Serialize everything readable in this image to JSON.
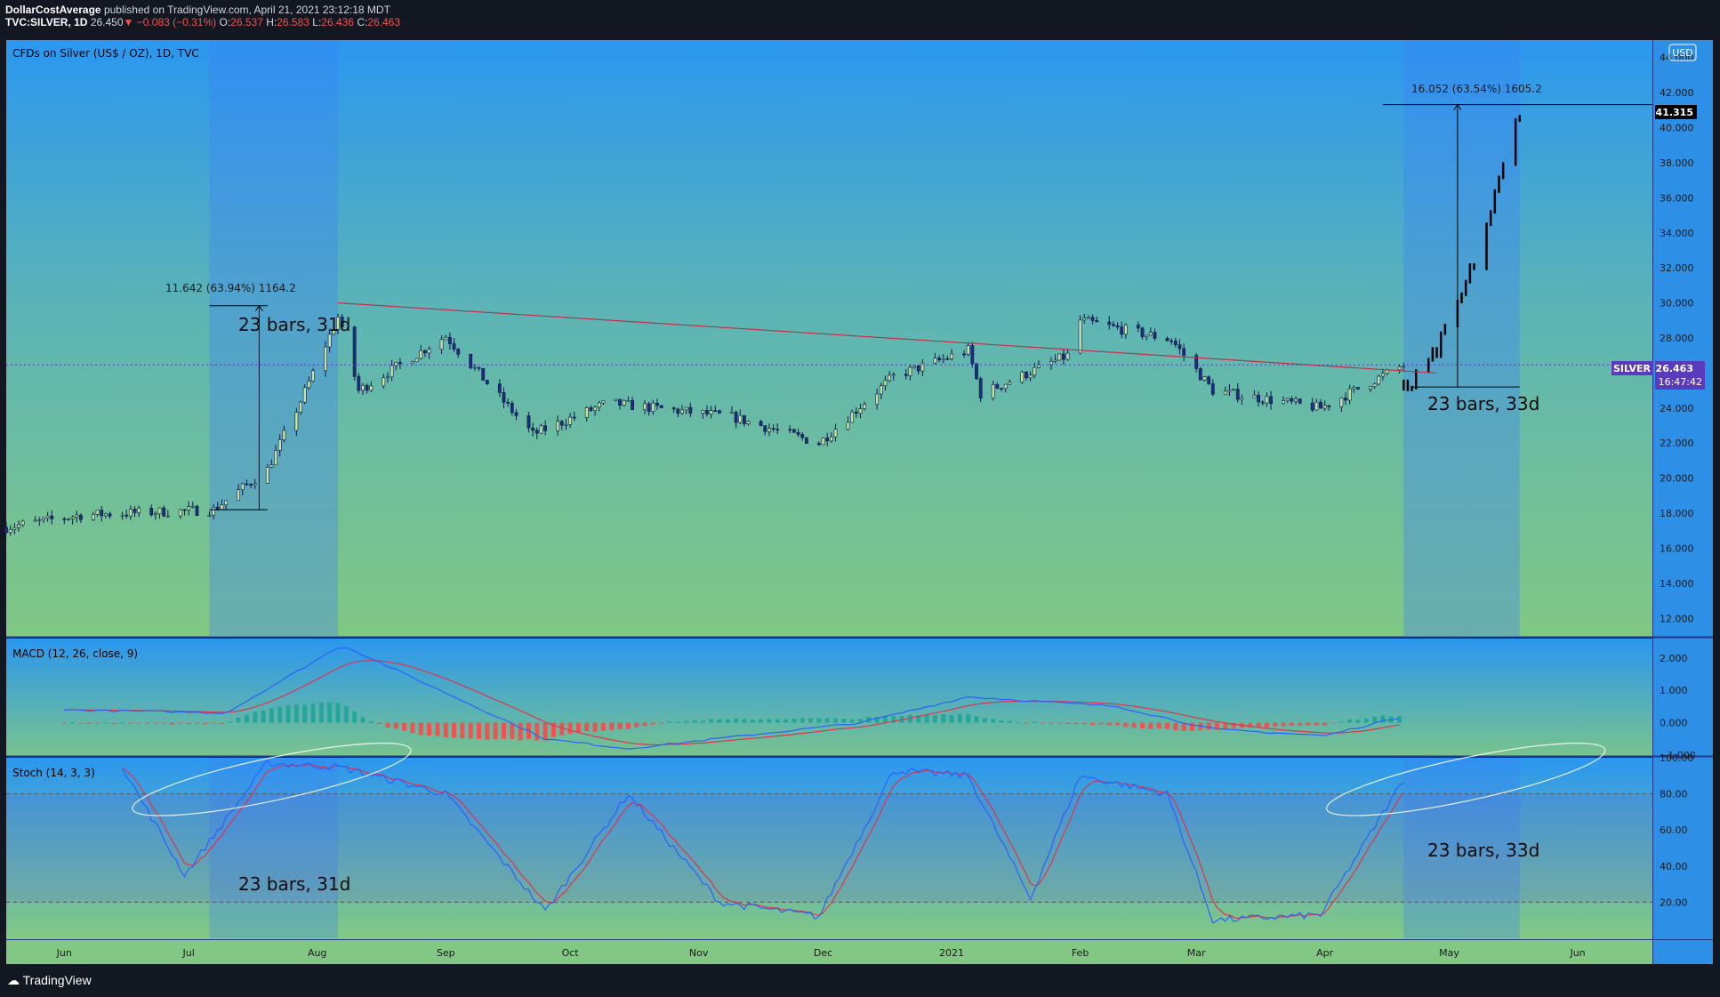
{
  "header": {
    "author": "DollarCostAverage",
    "published": "published on TradingView.com, April 21, 2021 23:12:18 MDT",
    "symbol": "TVC:SILVER, 1D",
    "last": "26.450",
    "arrow": "▼",
    "change": "−0.083 (−0.31%)",
    "o_label": "O:",
    "open": "26.537",
    "h_label": "H:",
    "high": "26.583",
    "l_label": "L:",
    "low": "26.436",
    "c_label": "C:",
    "close": "26.463"
  },
  "main": {
    "title": "CFDs on Silver (US$ / OZ), 1D, TVC",
    "currency": "USD",
    "price_ticks": [
      "44.000",
      "42.000",
      "40.000",
      "38.000",
      "36.000",
      "34.000",
      "32.000",
      "30.000",
      "28.000",
      "26.000",
      "24.000",
      "22.000",
      "20.000",
      "18.000",
      "16.000",
      "14.000",
      "12.000"
    ],
    "target_price": "41.315",
    "symbol_tag": "SILVER",
    "current_price": "26.463",
    "countdown": "16:47:42",
    "measure1_text": "11.642 (63.94%) 1164.2",
    "measure1_label": "23 bars, 31d",
    "measure2_text": "16.052 (63.54%) 1605.2",
    "measure2_label": "23 bars, 33d"
  },
  "macd": {
    "title": "MACD (12, 26, close, 9)",
    "ticks": [
      "2.000",
      "1.000",
      "0.000",
      "−1.000"
    ]
  },
  "stoch": {
    "title": "Stoch (14, 3, 3)",
    "ticks": [
      "100.00",
      "80.00",
      "60.00",
      "40.00",
      "20.00"
    ],
    "label1": "23 bars, 31d",
    "label2": "23 bars, 33d"
  },
  "time_axis": [
    "Jun",
    "Jul",
    "Aug",
    "Sep",
    "Oct",
    "Nov",
    "Dec",
    "2021",
    "Feb",
    "Mar",
    "Apr",
    "May",
    "Jun"
  ],
  "footer": {
    "brand": "TradingView"
  },
  "colors": {
    "up_candle": "#c8e6a0",
    "down_candle": "#1c2f7a",
    "macd_line": "#2962ff",
    "signal_line": "#e0334d",
    "hist_pos": "#26a69a",
    "hist_neg": "#ef5350",
    "trendline": "#c0304a",
    "price_tag": "#5b3bbd"
  },
  "chart_data": [
    {
      "type": "candlestick",
      "title": "CFDs on Silver (US$ / OZ), 1D, TVC",
      "ylim": [
        11,
        45
      ],
      "x_range": [
        "2020-05-18",
        "2021-06-19"
      ],
      "y_scale": "linear",
      "key_closes": [
        {
          "date": "2020-05-18",
          "close": 17.2
        },
        {
          "date": "2020-06-05",
          "close": 17.9
        },
        {
          "date": "2020-07-07",
          "close": 18.2
        },
        {
          "date": "2020-07-20",
          "close": 20.5
        },
        {
          "date": "2020-07-28",
          "close": 24.4
        },
        {
          "date": "2020-08-06",
          "close": 29.2
        },
        {
          "date": "2020-08-11",
          "close": 25.0
        },
        {
          "date": "2020-09-01",
          "close": 28.1
        },
        {
          "date": "2020-09-22",
          "close": 22.5
        },
        {
          "date": "2020-10-10",
          "close": 24.3
        },
        {
          "date": "2020-11-09",
          "close": 23.5
        },
        {
          "date": "2020-11-30",
          "close": 22.0
        },
        {
          "date": "2020-12-18",
          "close": 25.8
        },
        {
          "date": "2021-01-05",
          "close": 27.3
        },
        {
          "date": "2021-01-08",
          "close": 24.8
        },
        {
          "date": "2021-01-29",
          "close": 27.0
        },
        {
          "date": "2021-02-01",
          "close": 29.0
        },
        {
          "date": "2021-02-23",
          "close": 27.9
        },
        {
          "date": "2021-03-05",
          "close": 25.0
        },
        {
          "date": "2021-03-31",
          "close": 24.0
        },
        {
          "date": "2021-04-20",
          "close": 26.46
        }
      ],
      "projection": {
        "from": "2021-04-20",
        "to": "2021-05-18",
        "start": 25.2,
        "target": 41.315,
        "bars": 23,
        "days": 33,
        "change": "16.052 (63.54%) 1605.2"
      },
      "measure_2020": {
        "from": "2020-07-06",
        "to": "2020-08-06",
        "start": 18.2,
        "end": 29.84,
        "bars": 23,
        "days": 31,
        "change": "11.642 (63.94%) 1164.2"
      },
      "trendline": [
        {
          "date": "2020-08-06",
          "price": 30.0
        },
        {
          "date": "2021-04-28",
          "price": 26.0
        }
      ]
    },
    {
      "type": "line",
      "title": "MACD (12, 26, close, 9)",
      "ylim": [
        -1.0,
        2.6
      ],
      "series": [
        {
          "name": "MACD",
          "key_points": [
            {
              "date": "2020-06-01",
              "value": 0.4
            },
            {
              "date": "2020-07-10",
              "value": 0.3
            },
            {
              "date": "2020-08-07",
              "value": 2.4
            },
            {
              "date": "2020-09-25",
              "value": -0.5
            },
            {
              "date": "2020-10-15",
              "value": -0.8
            },
            {
              "date": "2020-12-10",
              "value": 0.0
            },
            {
              "date": "2021-01-05",
              "value": 0.8
            },
            {
              "date": "2021-02-10",
              "value": 0.5
            },
            {
              "date": "2021-03-05",
              "value": -0.2
            },
            {
              "date": "2021-04-01",
              "value": -0.4
            },
            {
              "date": "2021-04-20",
              "value": 0.2
            }
          ]
        }
      ]
    },
    {
      "type": "line",
      "title": "Stoch (14, 3, 3)",
      "ylim": [
        0,
        100
      ],
      "levels": [
        20,
        80
      ],
      "series": [
        {
          "name": "%K",
          "key_points": [
            {
              "date": "2020-06-15",
              "value": 95
            },
            {
              "date": "2020-06-30",
              "value": 35
            },
            {
              "date": "2020-07-20",
              "value": 97
            },
            {
              "date": "2020-08-06",
              "value": 95
            },
            {
              "date": "2020-09-01",
              "value": 80
            },
            {
              "date": "2020-09-25",
              "value": 15
            },
            {
              "date": "2020-10-15",
              "value": 80
            },
            {
              "date": "2020-11-06",
              "value": 20
            },
            {
              "date": "2020-11-30",
              "value": 12
            },
            {
              "date": "2020-12-18",
              "value": 93
            },
            {
              "date": "2021-01-05",
              "value": 90
            },
            {
              "date": "2021-01-20",
              "value": 22
            },
            {
              "date": "2021-02-01",
              "value": 90
            },
            {
              "date": "2021-02-22",
              "value": 80
            },
            {
              "date": "2021-03-05",
              "value": 10
            },
            {
              "date": "2021-03-31",
              "value": 13
            },
            {
              "date": "2021-04-20",
              "value": 88
            }
          ]
        }
      ]
    }
  ]
}
